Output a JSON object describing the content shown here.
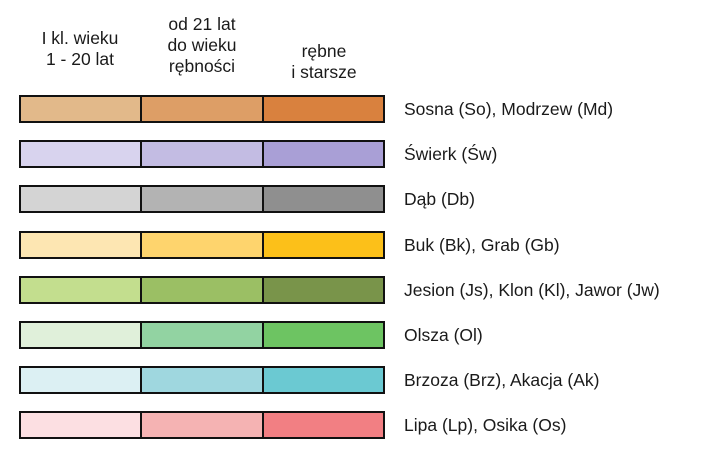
{
  "headers": [
    "I kl. wieku\n1 - 20 lat",
    "od 21 lat\ndo wieku\nrębności",
    "rębne\ni starsze"
  ],
  "rows": [
    {
      "label": "Sosna (So), Modrzew (Md)",
      "colors": [
        "#e2b98a",
        "#dd9e66",
        "#d9813e"
      ]
    },
    {
      "label": "Świerk (Św)",
      "colors": [
        "#d8d3ee",
        "#c3bce3",
        "#a99fd6"
      ]
    },
    {
      "label": "Dąb (Db)",
      "colors": [
        "#d4d4d4",
        "#b3b3b3",
        "#8f8f8f"
      ]
    },
    {
      "label": "Buk (Bk), Grab (Gb)",
      "colors": [
        "#fde6b2",
        "#fed46d",
        "#fcc019"
      ]
    },
    {
      "label": "Jesion (Js), Klon (Kl), Jawor (Jw)",
      "colors": [
        "#c3de8e",
        "#9bbf64",
        "#79944a"
      ]
    },
    {
      "label": "Olsza (Ol)",
      "colors": [
        "#e0f0da",
        "#92d3a2",
        "#6dc462"
      ]
    },
    {
      "label": "Brzoza (Brz), Akacja (Ak)",
      "colors": [
        "#dcf0f3",
        "#9fd7df",
        "#6bc9d2"
      ]
    },
    {
      "label": "Lipa (Lp), Osika (Os)",
      "colors": [
        "#fcdfe2",
        "#f5b3b3",
        "#f27f83"
      ]
    }
  ]
}
